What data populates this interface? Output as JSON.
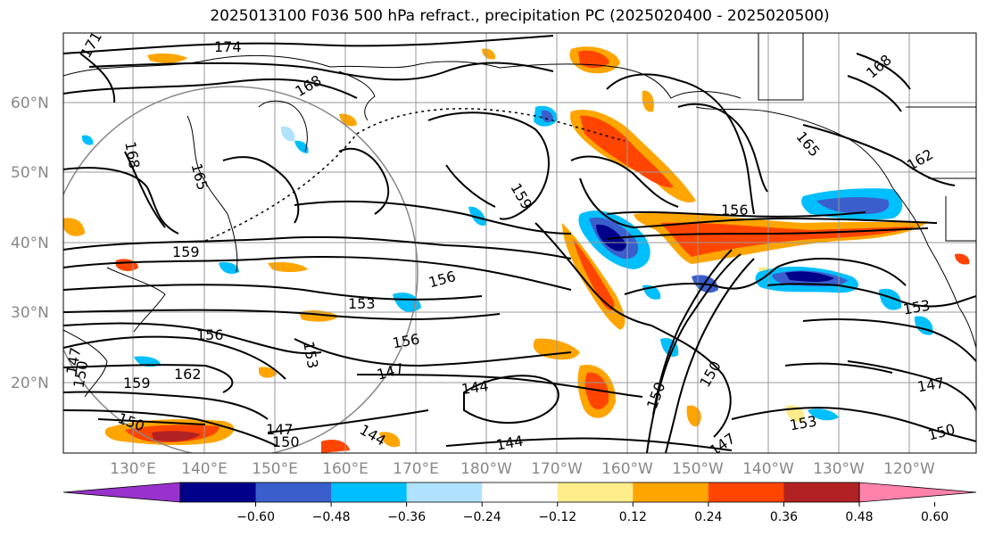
{
  "title": "2025013100 F036 500 hPa refract., precipitation PC (2025020400 - 2025020500)",
  "lat_labels": [
    "60°N",
    "50°N",
    "40°N",
    "30°N",
    "20°N"
  ],
  "lon_labels": [
    "130°E",
    "140°E",
    "150°E",
    "160°E",
    "170°E",
    "180°W",
    "170°W",
    "160°W",
    "150°W",
    "140°W",
    "130°W",
    "120°W"
  ],
  "contour_labels": [
    "174",
    "168",
    "171",
    "168",
    "165",
    "165",
    "168",
    "162",
    "159",
    "159",
    "156",
    "156",
    "153",
    "153",
    "153",
    "156",
    "156",
    "147",
    "144",
    "144",
    "162",
    "159",
    "150",
    "147",
    "150",
    "144",
    "150",
    "150",
    "147",
    "150",
    "153",
    "147",
    "150",
    "147"
  ],
  "colorbar": {
    "colors": [
      "#9932cc",
      "#00008b",
      "#3a5fcd",
      "#00bfff",
      "#b0e2ff",
      "#ffffff",
      "#ffec8b",
      "#ffa500",
      "#ff4500",
      "#b22222",
      "#ff82ab"
    ],
    "ticks": [
      "−0.60",
      "−0.48",
      "−0.36",
      "−0.24",
      "−0.12",
      "0.12",
      "0.24",
      "0.36",
      "0.48",
      "0.60"
    ]
  }
}
